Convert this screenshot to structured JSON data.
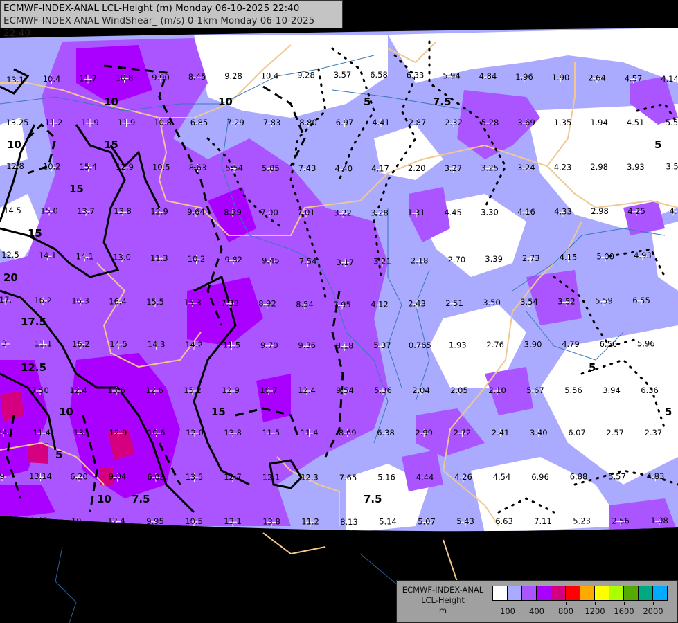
{
  "header": {
    "line1": "ECMWF-INDEX-ANAL LCL-Height (m) Monday 06-10-2025 22:40",
    "line2": "ECMWF-INDEX-ANAL WindShear_ (m/s) 0-1km Monday 06-10-2025 22:40"
  },
  "legend": {
    "model": "ECMWF-INDEX-ANAL",
    "parameter": "LCL-Height",
    "unit": "m",
    "colors": [
      "#ffffff",
      "#aaaaff",
      "#aa55ff",
      "#aa00ff",
      "#d40080",
      "#ff0000",
      "#ffaa00",
      "#ffff00",
      "#aaff00",
      "#55aa00",
      "#00aa80",
      "#00aaff"
    ],
    "tick_labels": [
      "100",
      "400",
      "800",
      "1200",
      "1600",
      "2000"
    ]
  },
  "contour_labels": [
    "10",
    "10",
    "15",
    "15",
    "15",
    "20",
    "17.5",
    "12.5",
    "10",
    "7.5",
    "5",
    "5",
    "5",
    "7.5",
    "10",
    "15",
    "7.5",
    "10",
    "5",
    "5"
  ],
  "stations": [
    "13.1",
    "10.4",
    "11.7",
    "10.8",
    "9.90",
    "8.45",
    "9.28",
    "10.4",
    "9.28",
    "3.57",
    "6.58",
    "6.33",
    "5.94",
    "4.84",
    "1.96",
    "1.90",
    "2.64",
    "4.57",
    "4.14",
    "13.25",
    "11.2",
    "11.9",
    "11.9",
    "10.8",
    "6.85",
    "7.29",
    "7.83",
    "8.80",
    "6.97",
    "4.41",
    "2.87",
    "2.32",
    "5.28",
    "3.69",
    "1.35",
    "1.94",
    "4.51",
    "5.5",
    "12.8",
    "10.2",
    "15.4",
    "12.9",
    "10.5",
    "8.63",
    "5.54",
    "5.85",
    "7.43",
    "4.40",
    "4.17",
    "2.20",
    "3.27",
    "3.25",
    "3.24",
    "4.23",
    "2.98",
    "3.93",
    "3.5",
    "14.5",
    "15.0",
    "13.7",
    "13.8",
    "12.9",
    "9.64",
    "8.29",
    "7.00",
    "7.01",
    "3.22",
    "3.28",
    "1.31",
    "4.45",
    "3.30",
    "4.16",
    "4.33",
    "2.98",
    "4.25",
    "4.",
    "12.5",
    "14.1",
    "14.1",
    "13.0",
    "11.3",
    "10.2",
    "9.82",
    "9.45",
    "7.54",
    "3.17",
    "3.21",
    "2.18",
    "2.70",
    "3.39",
    "2.73",
    "4.15",
    "5.00",
    "4.93",
    "17.",
    "16.2",
    "16.3",
    "16.4",
    "15.5",
    "15.3",
    "7.33",
    "8.92",
    "8.54",
    "7.95",
    "4.12",
    "2.43",
    "2.51",
    "3.50",
    "3.54",
    "3.52",
    "5.59",
    "6.55",
    "3.",
    "11.1",
    "16.2",
    "14.5",
    "14.3",
    "14.2",
    "11.5",
    "9.70",
    "9.36",
    "8.18",
    "5.37",
    "0.765",
    "1.93",
    "2.76",
    "3.90",
    "4.79",
    "6.56",
    "5.96",
    "7.50",
    "12.4",
    "13.6",
    "12.6",
    "15.2",
    "12.9",
    "10.7",
    "12.4",
    "9.54",
    "5.36",
    "2.04",
    "2.05",
    "2.10",
    "5.67",
    "5.56",
    "3.94",
    "6.36",
    "14.",
    "11.4",
    "13.",
    "12.9",
    "10.6",
    "12.0",
    "13.8",
    "11.5",
    "11.4",
    "8.69",
    "6.38",
    "2.99",
    "2.72",
    "2.41",
    "3.40",
    "6.07",
    "2.57",
    "2.37",
    "9",
    "13.14",
    "6.20",
    "9.04",
    "6.03",
    "13.5",
    "12.7",
    "12.1",
    "12.3",
    "7.65",
    "5.16",
    "4.44",
    "4.26",
    "4.54",
    "6.96",
    "6.88",
    "5.57",
    "4.83",
    "6",
    "2.40",
    "10.",
    "12.4",
    "9.95",
    "10.5",
    "13.1",
    "13.8",
    "11.2",
    "8.13",
    "5.14",
    "5.07",
    "5.43",
    "6.63",
    "7.11",
    "5.23",
    "2.56",
    "1.08"
  ]
}
